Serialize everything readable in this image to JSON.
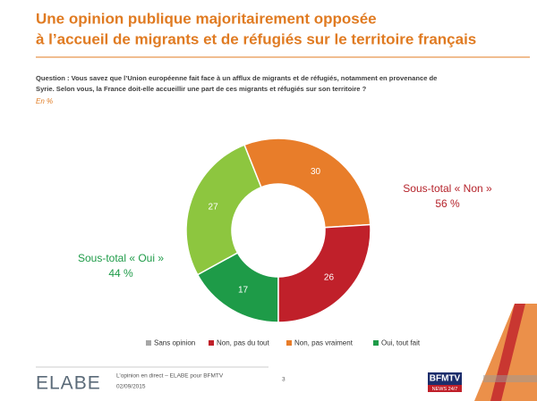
{
  "chart_data": {
    "type": "donut",
    "title": [
      "Une opinion publique majoritairement opposée",
      "à l’accueil de migrants et de réfugiés sur le territoire français"
    ],
    "question": [
      "Question : Vous savez que l’Union européenne fait face à un afflux de migrants et de réfugiés, notamment en provenance de",
      "Syrie. Selon vous, la France doit-elle accueillir une part de ces migrants et réfugiés sur son territoire ?"
    ],
    "unit_note": "En %",
    "categories": [
      "Sans opinion",
      "Non, pas du tout",
      "Non, pas vraiment",
      "Oui, tout fait",
      null
    ],
    "values": [
      0,
      26,
      30,
      17,
      27
    ],
    "colors": [
      "#a6a6a6",
      "#c0202a",
      "#e87d2a",
      "#1e9b48",
      "#8dc63f"
    ],
    "annotations": [
      {
        "label": "Sous-total « Non »",
        "total": "56 %",
        "color": "#b5232b"
      },
      {
        "label": "Sous-total « Oui »",
        "total": "44 %",
        "color": "#1e9b48"
      }
    ]
  },
  "footer": {
    "brand": "ELABE",
    "source": "L’opinion en direct – ELABE pour BFMTV",
    "date": "02/09/2015",
    "page": "3",
    "logo": "BFMTV",
    "logo_sub": "NEWS 24/7"
  }
}
